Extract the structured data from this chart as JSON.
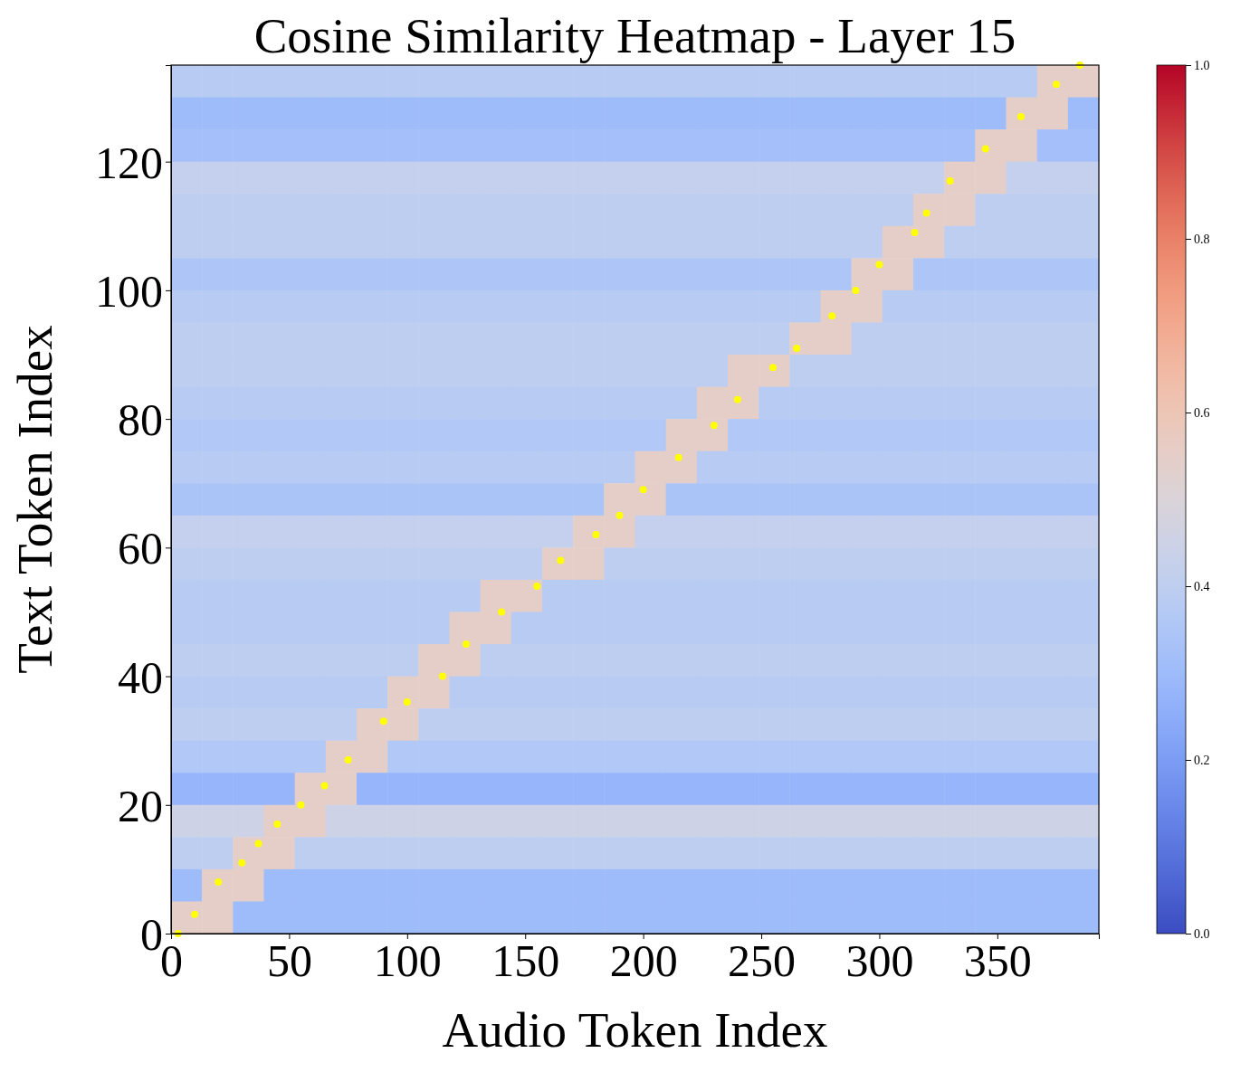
{
  "chart_data": {
    "type": "heatmap",
    "title": "Cosine Similarity Heatmap - Layer 15",
    "xlabel": "Audio Token Index",
    "ylabel": "Text Token Index",
    "xlim": [
      0,
      393
    ],
    "ylim": [
      0,
      135
    ],
    "xticks": [
      0,
      50,
      100,
      150,
      200,
      250,
      300,
      350
    ],
    "yticks": [
      0,
      20,
      40,
      60,
      80,
      100,
      120
    ],
    "clim": [
      0,
      1
    ],
    "cticks": [
      {
        "value": 0,
        "label": "0.0"
      },
      0.2,
      0.4,
      0.6,
      0.8,
      {
        "value": 1,
        "label": "1.0"
      }
    ],
    "cells": [
      [
        0.38,
        0.38,
        0.38,
        0.38,
        0.38,
        0.38,
        0.38,
        0.38,
        0.38,
        0.38,
        0.38,
        0.38,
        0.38,
        0.38,
        0.38,
        0.38,
        0.38,
        0.38,
        0.38,
        0.38,
        0.38,
        0.38,
        0.38,
        0.38,
        0.38,
        0.38,
        0.38,
        0.38,
        0.55,
        0.55
      ],
      [
        0.3,
        0.3,
        0.3,
        0.3,
        0.3,
        0.3,
        0.3,
        0.3,
        0.3,
        0.3,
        0.3,
        0.3,
        0.3,
        0.3,
        0.3,
        0.3,
        0.3,
        0.3,
        0.3,
        0.3,
        0.3,
        0.3,
        0.3,
        0.3,
        0.3,
        0.3,
        0.3,
        0.55,
        0.55,
        0.3
      ],
      [
        0.32,
        0.32,
        0.32,
        0.32,
        0.32,
        0.32,
        0.32,
        0.32,
        0.32,
        0.32,
        0.32,
        0.32,
        0.32,
        0.32,
        0.32,
        0.32,
        0.32,
        0.32,
        0.32,
        0.32,
        0.32,
        0.32,
        0.32,
        0.32,
        0.32,
        0.32,
        0.55,
        0.55,
        0.32,
        0.32
      ],
      [
        0.42,
        0.42,
        0.42,
        0.42,
        0.42,
        0.42,
        0.42,
        0.42,
        0.42,
        0.42,
        0.42,
        0.42,
        0.42,
        0.42,
        0.42,
        0.42,
        0.42,
        0.42,
        0.42,
        0.42,
        0.42,
        0.42,
        0.42,
        0.42,
        0.42,
        0.55,
        0.55,
        0.42,
        0.42,
        0.42
      ],
      [
        0.4,
        0.4,
        0.4,
        0.4,
        0.4,
        0.4,
        0.4,
        0.4,
        0.4,
        0.4,
        0.4,
        0.4,
        0.4,
        0.4,
        0.4,
        0.4,
        0.4,
        0.4,
        0.4,
        0.4,
        0.4,
        0.4,
        0.4,
        0.4,
        0.55,
        0.55,
        0.4,
        0.4,
        0.4,
        0.4
      ],
      [
        0.4,
        0.4,
        0.4,
        0.4,
        0.4,
        0.4,
        0.4,
        0.4,
        0.4,
        0.4,
        0.4,
        0.4,
        0.4,
        0.4,
        0.4,
        0.4,
        0.4,
        0.4,
        0.4,
        0.4,
        0.4,
        0.4,
        0.4,
        0.55,
        0.55,
        0.4,
        0.4,
        0.4,
        0.4,
        0.4
      ],
      [
        0.35,
        0.35,
        0.35,
        0.35,
        0.35,
        0.35,
        0.35,
        0.35,
        0.35,
        0.35,
        0.35,
        0.35,
        0.35,
        0.35,
        0.35,
        0.35,
        0.35,
        0.35,
        0.35,
        0.35,
        0.35,
        0.35,
        0.55,
        0.55,
        0.35,
        0.35,
        0.35,
        0.35,
        0.35,
        0.35
      ],
      [
        0.38,
        0.38,
        0.38,
        0.38,
        0.38,
        0.38,
        0.38,
        0.38,
        0.38,
        0.38,
        0.38,
        0.38,
        0.38,
        0.38,
        0.38,
        0.38,
        0.38,
        0.38,
        0.38,
        0.38,
        0.38,
        0.55,
        0.55,
        0.38,
        0.38,
        0.38,
        0.38,
        0.38,
        0.38,
        0.38
      ],
      [
        0.4,
        0.4,
        0.4,
        0.4,
        0.4,
        0.4,
        0.4,
        0.4,
        0.4,
        0.4,
        0.4,
        0.4,
        0.4,
        0.4,
        0.4,
        0.4,
        0.4,
        0.4,
        0.4,
        0.4,
        0.55,
        0.55,
        0.4,
        0.4,
        0.4,
        0.4,
        0.4,
        0.4,
        0.4,
        0.4
      ],
      [
        0.4,
        0.4,
        0.4,
        0.4,
        0.4,
        0.4,
        0.4,
        0.4,
        0.4,
        0.4,
        0.4,
        0.4,
        0.4,
        0.4,
        0.4,
        0.4,
        0.4,
        0.4,
        0.55,
        0.55,
        0.4,
        0.4,
        0.4,
        0.4,
        0.4,
        0.4,
        0.4,
        0.4,
        0.4,
        0.4
      ],
      [
        0.38,
        0.38,
        0.38,
        0.38,
        0.38,
        0.38,
        0.38,
        0.38,
        0.38,
        0.38,
        0.38,
        0.38,
        0.38,
        0.38,
        0.38,
        0.38,
        0.38,
        0.55,
        0.55,
        0.38,
        0.38,
        0.38,
        0.38,
        0.38,
        0.38,
        0.38,
        0.38,
        0.38,
        0.38,
        0.38
      ],
      [
        0.36,
        0.36,
        0.36,
        0.36,
        0.36,
        0.36,
        0.36,
        0.36,
        0.36,
        0.36,
        0.36,
        0.36,
        0.36,
        0.36,
        0.36,
        0.36,
        0.55,
        0.55,
        0.36,
        0.36,
        0.36,
        0.36,
        0.36,
        0.36,
        0.36,
        0.36,
        0.36,
        0.36,
        0.36,
        0.36
      ],
      [
        0.38,
        0.38,
        0.38,
        0.38,
        0.38,
        0.38,
        0.38,
        0.38,
        0.38,
        0.38,
        0.38,
        0.38,
        0.38,
        0.38,
        0.38,
        0.55,
        0.55,
        0.38,
        0.38,
        0.38,
        0.38,
        0.38,
        0.38,
        0.38,
        0.38,
        0.38,
        0.38,
        0.38,
        0.38,
        0.38
      ],
      [
        0.34,
        0.34,
        0.34,
        0.34,
        0.34,
        0.34,
        0.34,
        0.34,
        0.34,
        0.34,
        0.34,
        0.34,
        0.34,
        0.34,
        0.55,
        0.55,
        0.34,
        0.34,
        0.34,
        0.34,
        0.34,
        0.34,
        0.34,
        0.34,
        0.34,
        0.34,
        0.34,
        0.34,
        0.34,
        0.34
      ],
      [
        0.42,
        0.42,
        0.42,
        0.42,
        0.42,
        0.42,
        0.42,
        0.42,
        0.42,
        0.42,
        0.42,
        0.42,
        0.42,
        0.55,
        0.55,
        0.42,
        0.42,
        0.42,
        0.42,
        0.42,
        0.42,
        0.42,
        0.42,
        0.42,
        0.42,
        0.42,
        0.42,
        0.42,
        0.42,
        0.42
      ],
      [
        0.4,
        0.4,
        0.4,
        0.4,
        0.4,
        0.4,
        0.4,
        0.4,
        0.4,
        0.4,
        0.4,
        0.4,
        0.55,
        0.55,
        0.4,
        0.4,
        0.4,
        0.4,
        0.4,
        0.4,
        0.4,
        0.4,
        0.4,
        0.4,
        0.4,
        0.4,
        0.4,
        0.4,
        0.4,
        0.4
      ],
      [
        0.38,
        0.38,
        0.38,
        0.38,
        0.38,
        0.38,
        0.38,
        0.38,
        0.38,
        0.38,
        0.55,
        0.55,
        0.38,
        0.38,
        0.38,
        0.38,
        0.38,
        0.38,
        0.38,
        0.38,
        0.38,
        0.38,
        0.38,
        0.38,
        0.38,
        0.38,
        0.38,
        0.38,
        0.38,
        0.38
      ],
      [
        0.38,
        0.38,
        0.38,
        0.38,
        0.38,
        0.38,
        0.38,
        0.38,
        0.38,
        0.55,
        0.55,
        0.38,
        0.38,
        0.38,
        0.38,
        0.38,
        0.38,
        0.38,
        0.38,
        0.38,
        0.38,
        0.38,
        0.38,
        0.38,
        0.38,
        0.38,
        0.38,
        0.38,
        0.38,
        0.38
      ],
      [
        0.4,
        0.4,
        0.4,
        0.4,
        0.4,
        0.4,
        0.4,
        0.4,
        0.55,
        0.55,
        0.4,
        0.4,
        0.4,
        0.4,
        0.4,
        0.4,
        0.4,
        0.4,
        0.4,
        0.4,
        0.4,
        0.4,
        0.4,
        0.4,
        0.4,
        0.4,
        0.4,
        0.4,
        0.4,
        0.4
      ],
      [
        0.38,
        0.38,
        0.38,
        0.38,
        0.38,
        0.38,
        0.38,
        0.55,
        0.55,
        0.38,
        0.38,
        0.38,
        0.38,
        0.38,
        0.38,
        0.38,
        0.38,
        0.38,
        0.38,
        0.38,
        0.38,
        0.38,
        0.38,
        0.38,
        0.38,
        0.38,
        0.38,
        0.38,
        0.38,
        0.38
      ],
      [
        0.4,
        0.4,
        0.4,
        0.4,
        0.4,
        0.4,
        0.55,
        0.55,
        0.4,
        0.4,
        0.4,
        0.4,
        0.4,
        0.4,
        0.4,
        0.4,
        0.4,
        0.4,
        0.4,
        0.4,
        0.4,
        0.4,
        0.4,
        0.4,
        0.4,
        0.4,
        0.4,
        0.4,
        0.4,
        0.4
      ],
      [
        0.36,
        0.36,
        0.36,
        0.36,
        0.36,
        0.55,
        0.55,
        0.36,
        0.36,
        0.36,
        0.36,
        0.36,
        0.36,
        0.36,
        0.36,
        0.36,
        0.36,
        0.36,
        0.36,
        0.36,
        0.36,
        0.36,
        0.36,
        0.36,
        0.36,
        0.36,
        0.36,
        0.36,
        0.36,
        0.36
      ],
      [
        0.28,
        0.28,
        0.28,
        0.28,
        0.55,
        0.55,
        0.28,
        0.28,
        0.28,
        0.28,
        0.28,
        0.28,
        0.28,
        0.28,
        0.28,
        0.28,
        0.28,
        0.28,
        0.28,
        0.28,
        0.28,
        0.28,
        0.28,
        0.28,
        0.28,
        0.28,
        0.28,
        0.28,
        0.28,
        0.28
      ],
      [
        0.45,
        0.45,
        0.45,
        0.55,
        0.55,
        0.45,
        0.45,
        0.45,
        0.45,
        0.45,
        0.45,
        0.45,
        0.45,
        0.45,
        0.45,
        0.45,
        0.45,
        0.45,
        0.45,
        0.45,
        0.45,
        0.45,
        0.45,
        0.45,
        0.45,
        0.45,
        0.45,
        0.45,
        0.45,
        0.45
      ],
      [
        0.4,
        0.4,
        0.55,
        0.55,
        0.4,
        0.4,
        0.4,
        0.4,
        0.4,
        0.4,
        0.4,
        0.4,
        0.4,
        0.4,
        0.4,
        0.4,
        0.4,
        0.4,
        0.4,
        0.4,
        0.4,
        0.4,
        0.4,
        0.4,
        0.4,
        0.4,
        0.4,
        0.4,
        0.4,
        0.4
      ],
      [
        0.3,
        0.55,
        0.55,
        0.3,
        0.3,
        0.3,
        0.3,
        0.3,
        0.3,
        0.3,
        0.3,
        0.3,
        0.3,
        0.3,
        0.3,
        0.3,
        0.3,
        0.3,
        0.3,
        0.3,
        0.3,
        0.3,
        0.3,
        0.3,
        0.3,
        0.3,
        0.3,
        0.3,
        0.3,
        0.3
      ],
      [
        0.55,
        0.55,
        0.3,
        0.3,
        0.3,
        0.3,
        0.3,
        0.3,
        0.3,
        0.3,
        0.3,
        0.3,
        0.3,
        0.3,
        0.3,
        0.3,
        0.3,
        0.3,
        0.3,
        0.3,
        0.3,
        0.3,
        0.3,
        0.3,
        0.3,
        0.3,
        0.3,
        0.3,
        0.3,
        0.3
      ]
    ],
    "marker": "circle",
    "series": [
      {
        "type": "scatter",
        "color": "#ffff00",
        "x": [
          3,
          10,
          20,
          30,
          37,
          45,
          55,
          65,
          75,
          90,
          100,
          115,
          125,
          140,
          155,
          165,
          180,
          190,
          200,
          215,
          230,
          240,
          255,
          265,
          280,
          290,
          300,
          315,
          320,
          330,
          345,
          360,
          375,
          385
        ],
        "values": [
          0,
          3,
          8,
          11,
          14,
          17,
          20,
          23,
          27,
          33,
          36,
          40,
          45,
          50,
          54,
          58,
          62,
          65,
          69,
          74,
          79,
          83,
          88,
          91,
          96,
          100,
          104,
          109,
          112,
          117,
          122,
          127,
          132,
          135
        ]
      }
    ]
  }
}
